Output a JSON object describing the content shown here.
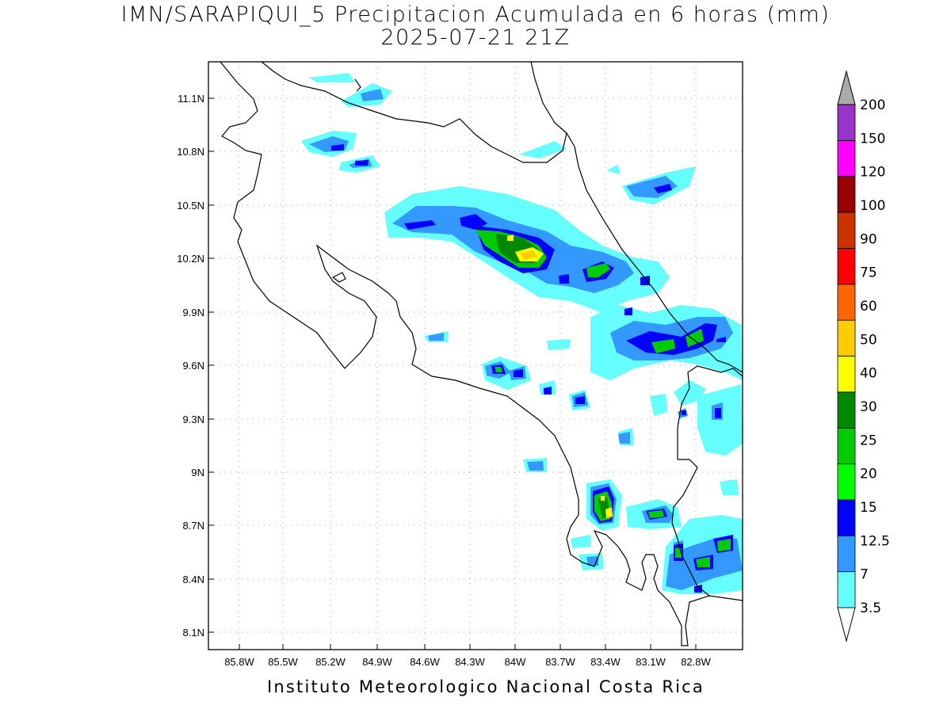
{
  "title_line1": "IMN/SARAPIQUI_5 Precipitacion Acumulada en 6 horas (mm)",
  "title_line2": "2025-07-21 21Z",
  "credit": "Instituto Meteorologico Nacional Costa Rica",
  "map": {
    "lon_range": [
      -86.0,
      -82.6
    ],
    "lat_range": [
      8.0,
      11.3
    ],
    "lat_ticks": [
      "11.1N",
      "10.8N",
      "10.5N",
      "10.2N",
      "9.9N",
      "9.6N",
      "9.3N",
      "9N",
      "8.7N",
      "8.4N",
      "8.1N"
    ],
    "lon_ticks": [
      "85.8W",
      "85.5W",
      "85.2W",
      "84.9W",
      "84.6W",
      "84.3W",
      "84W",
      "83.7W",
      "83.4W",
      "83.1W",
      "82.8W"
    ],
    "grid": "dotted"
  },
  "colorbar": {
    "levels": [
      "3.5",
      "7",
      "12.5",
      "15",
      "20",
      "25",
      "30",
      "40",
      "50",
      "60",
      "75",
      "90",
      "100",
      "120",
      "150",
      "200"
    ],
    "colors": [
      "#66ffff",
      "#3399ff",
      "#0000ff",
      "#00ff00",
      "#00cc00",
      "#008800",
      "#ffff00",
      "#ffcc00",
      "#ff6600",
      "#ff0000",
      "#cc3300",
      "#990000",
      "#ff00ff",
      "#9933cc",
      "#f2f2f2",
      "#aaaaaa"
    ],
    "extend": "both"
  }
}
